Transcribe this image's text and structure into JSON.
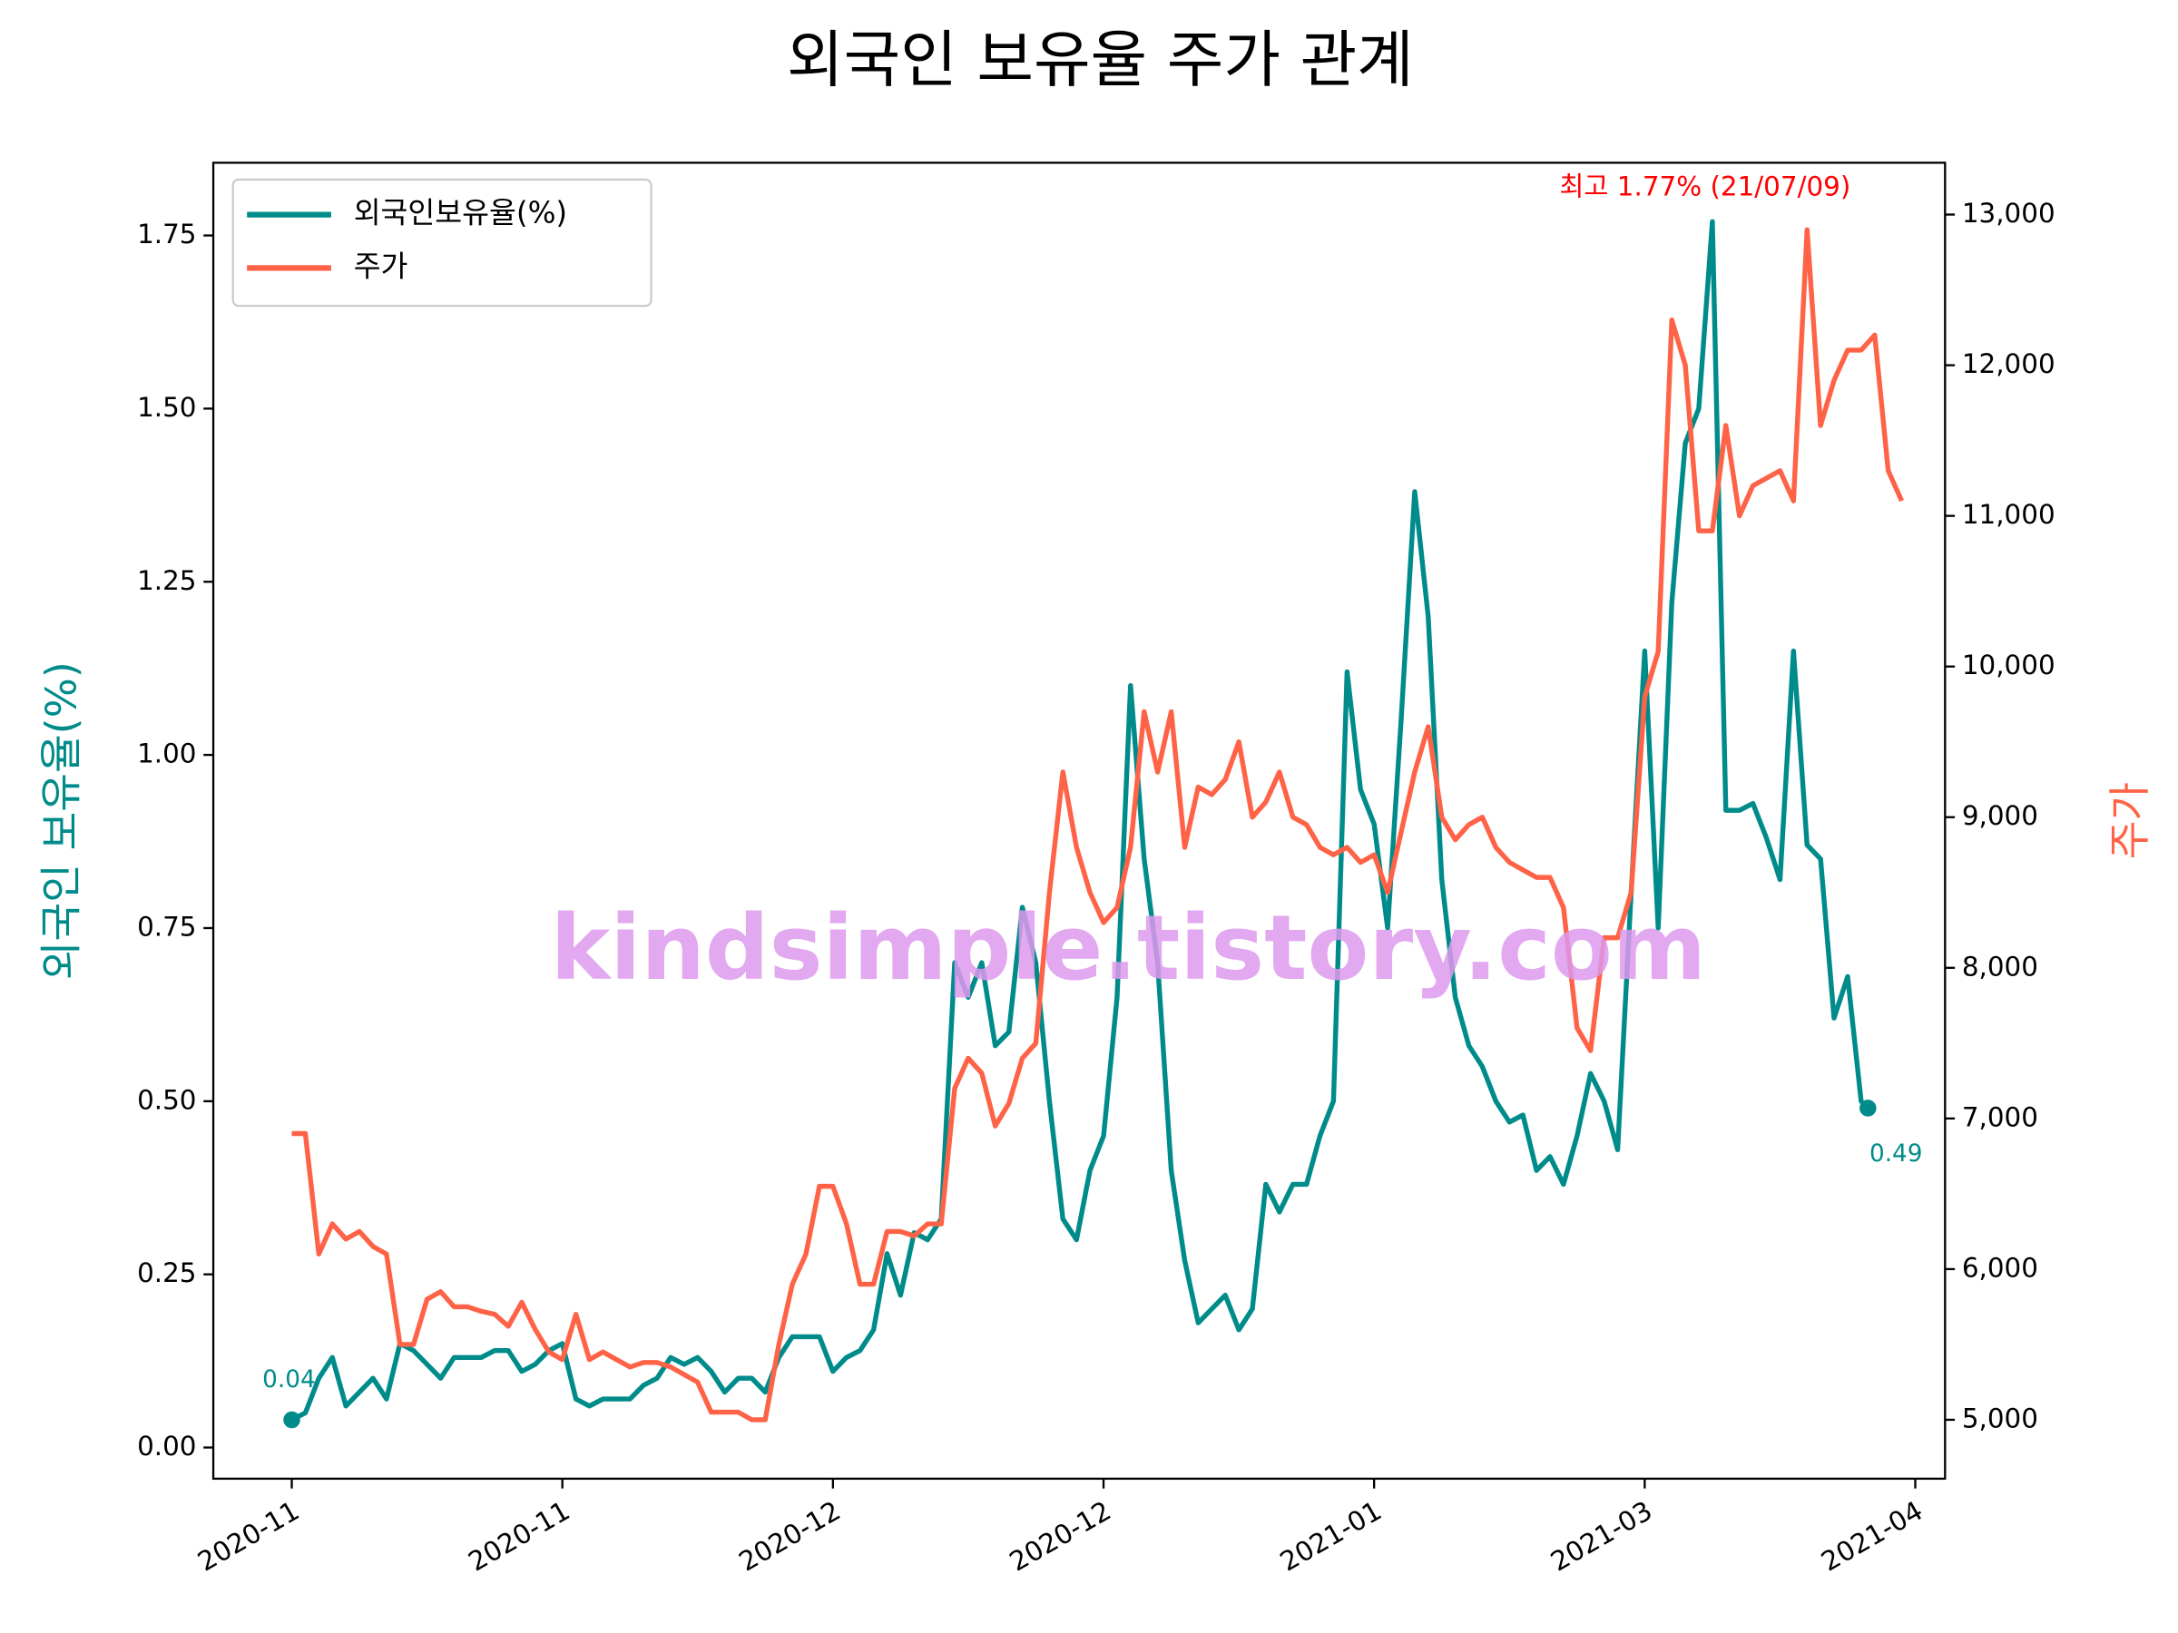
{
  "chart_data": {
    "type": "line",
    "title": "외국인 보유율 주가 관계",
    "ylabel": "외국인 보유율(%)",
    "y2label": "주가",
    "annotations": [
      "0.04",
      "0.49",
      "최고 1.77% (21/07/09)"
    ],
    "watermark": "kindsimple.tistory.com",
    "legend": "upper left",
    "xlim": [
      -11.6,
      244.4
    ],
    "xticks": [
      {
        "value": 0,
        "label": "2020-11"
      },
      {
        "value": 40,
        "label": "2020-11"
      },
      {
        "value": 80,
        "label": "2020-12"
      },
      {
        "value": 120,
        "label": "2020-12"
      },
      {
        "value": 160,
        "label": "2021-01"
      },
      {
        "value": 200,
        "label": "2021-03"
      },
      {
        "value": 240,
        "label": "2021-04"
      }
    ],
    "ylim": [
      -0.045,
      1.855
    ],
    "yticks": [
      {
        "value": 0,
        "label": "0.00"
      },
      {
        "value": 0.25,
        "label": "0.25"
      },
      {
        "value": 0.5,
        "label": "0.50"
      },
      {
        "value": 0.75,
        "label": "0.75"
      },
      {
        "value": 1,
        "label": "1.00"
      },
      {
        "value": 1.25,
        "label": "1.25"
      },
      {
        "value": 1.5,
        "label": "1.50"
      },
      {
        "value": 1.75,
        "label": "1.75"
      }
    ],
    "y2lim": [
      4609,
      13344
    ],
    "y2ticks": [
      {
        "value": 5000,
        "label": "5,000"
      },
      {
        "value": 6000,
        "label": "6,000"
      },
      {
        "value": 7000,
        "label": "7,000"
      },
      {
        "value": 8000,
        "label": "8,000"
      },
      {
        "value": 9000,
        "label": "9,000"
      },
      {
        "value": 10000,
        "label": "10,000"
      },
      {
        "value": 11000,
        "label": "11,000"
      },
      {
        "value": 12000,
        "label": "12,000"
      },
      {
        "value": 13000,
        "label": "13,000"
      }
    ],
    "series": [
      {
        "name": "외국인보유율(%)",
        "color": "#008b8b",
        "x": [
          0,
          2,
          4,
          6,
          8,
          10,
          12,
          14,
          16,
          18,
          20,
          22,
          24,
          26,
          28,
          30,
          32,
          34,
          36,
          38,
          40,
          42,
          44,
          46,
          48,
          50,
          52,
          54,
          56,
          58,
          60,
          62,
          64,
          66,
          68,
          70,
          72,
          74,
          76,
          78,
          80,
          82,
          84,
          86,
          88,
          90,
          92,
          94,
          96,
          98,
          100,
          102,
          104,
          106,
          108,
          110,
          112,
          114,
          116,
          118,
          120,
          122,
          124,
          126,
          128,
          130,
          132,
          134,
          136,
          138,
          140,
          142,
          144,
          146,
          148,
          150,
          152,
          154,
          156,
          158,
          160,
          162,
          164,
          166,
          168,
          170,
          172,
          174,
          176,
          178,
          180,
          182,
          184,
          186,
          188,
          190,
          192,
          194,
          196,
          198,
          200,
          202,
          204,
          206,
          208,
          210,
          212,
          214,
          216,
          218,
          220,
          222,
          224,
          226,
          228,
          230,
          232,
          233
        ],
        "values": [
          0.04,
          0.05,
          0.1,
          0.13,
          0.06,
          0.08,
          0.1,
          0.07,
          0.15,
          0.14,
          0.12,
          0.1,
          0.13,
          0.13,
          0.13,
          0.14,
          0.14,
          0.11,
          0.12,
          0.14,
          0.15,
          0.07,
          0.06,
          0.07,
          0.07,
          0.07,
          0.09,
          0.1,
          0.13,
          0.12,
          0.13,
          0.11,
          0.08,
          0.1,
          0.1,
          0.08,
          0.13,
          0.16,
          0.16,
          0.16,
          0.11,
          0.13,
          0.14,
          0.17,
          0.28,
          0.22,
          0.31,
          0.3,
          0.33,
          0.7,
          0.65,
          0.7,
          0.58,
          0.6,
          0.78,
          0.7,
          0.5,
          0.33,
          0.3,
          0.4,
          0.45,
          0.65,
          1.1,
          0.85,
          0.7,
          0.4,
          0.27,
          0.18,
          0.2,
          0.22,
          0.17,
          0.2,
          0.38,
          0.34,
          0.38,
          0.38,
          0.45,
          0.5,
          1.12,
          0.95,
          0.9,
          0.75,
          1.05,
          1.38,
          1.2,
          0.82,
          0.65,
          0.58,
          0.55,
          0.5,
          0.47,
          0.48,
          0.4,
          0.42,
          0.38,
          0.45,
          0.54,
          0.5,
          0.43,
          0.8,
          1.15,
          0.75,
          1.22,
          1.45,
          1.5,
          1.77,
          0.92,
          0.92,
          0.93,
          0.88,
          0.82,
          1.15,
          0.87,
          0.85,
          0.62,
          0.68,
          0.5,
          0.49
        ]
      },
      {
        "name": "주가",
        "color": "#ff6347",
        "axis": "y2",
        "x": [
          0,
          2,
          4,
          6,
          8,
          10,
          12,
          14,
          16,
          18,
          20,
          22,
          24,
          26,
          28,
          30,
          32,
          34,
          36,
          38,
          40,
          42,
          44,
          46,
          48,
          50,
          52,
          54,
          56,
          58,
          60,
          62,
          64,
          66,
          68,
          70,
          72,
          74,
          76,
          78,
          80,
          82,
          84,
          86,
          88,
          90,
          92,
          94,
          96,
          98,
          100,
          102,
          104,
          106,
          108,
          110,
          112,
          114,
          116,
          118,
          120,
          122,
          124,
          126,
          128,
          130,
          132,
          134,
          136,
          138,
          140,
          142,
          144,
          146,
          148,
          150,
          152,
          154,
          156,
          158,
          160,
          162,
          164,
          166,
          168,
          170,
          172,
          174,
          176,
          178,
          180,
          182,
          184,
          186,
          188,
          190,
          192,
          194,
          196,
          198,
          200,
          202,
          204,
          206,
          208,
          210,
          212,
          214,
          216,
          218,
          220,
          222,
          224,
          226,
          228,
          230,
          232,
          234,
          236,
          238
        ],
        "values": [
          6900,
          6900,
          6100,
          6300,
          6200,
          6250,
          6150,
          6100,
          5500,
          5500,
          5800,
          5850,
          5750,
          5750,
          5720,
          5700,
          5620,
          5780,
          5600,
          5450,
          5400,
          5700,
          5400,
          5450,
          5400,
          5350,
          5380,
          5380,
          5350,
          5300,
          5250,
          5050,
          5050,
          5050,
          5000,
          5000,
          5500,
          5900,
          6100,
          6550,
          6550,
          6300,
          5900,
          5900,
          6250,
          6250,
          6220,
          6300,
          6300,
          7200,
          7400,
          7300,
          6950,
          7100,
          7400,
          7500,
          8500,
          9300,
          8800,
          8500,
          8300,
          8400,
          8800,
          9700,
          9300,
          9700,
          8800,
          9200,
          9150,
          9250,
          9500,
          9000,
          9100,
          9300,
          9000,
          8950,
          8800,
          8750,
          8800,
          8700,
          8750,
          8500,
          8900,
          9300,
          9600,
          9000,
          8850,
          8950,
          9000,
          8800,
          8700,
          8650,
          8600,
          8600,
          8400,
          7600,
          7450,
          8200,
          8200,
          8500,
          9800,
          10100,
          12300,
          12000,
          10900,
          10900,
          11600,
          11000,
          11200,
          11250,
          11300,
          11100,
          12900,
          11600,
          11900,
          12100,
          12100,
          12200,
          11300,
          11100
        ]
      }
    ]
  }
}
